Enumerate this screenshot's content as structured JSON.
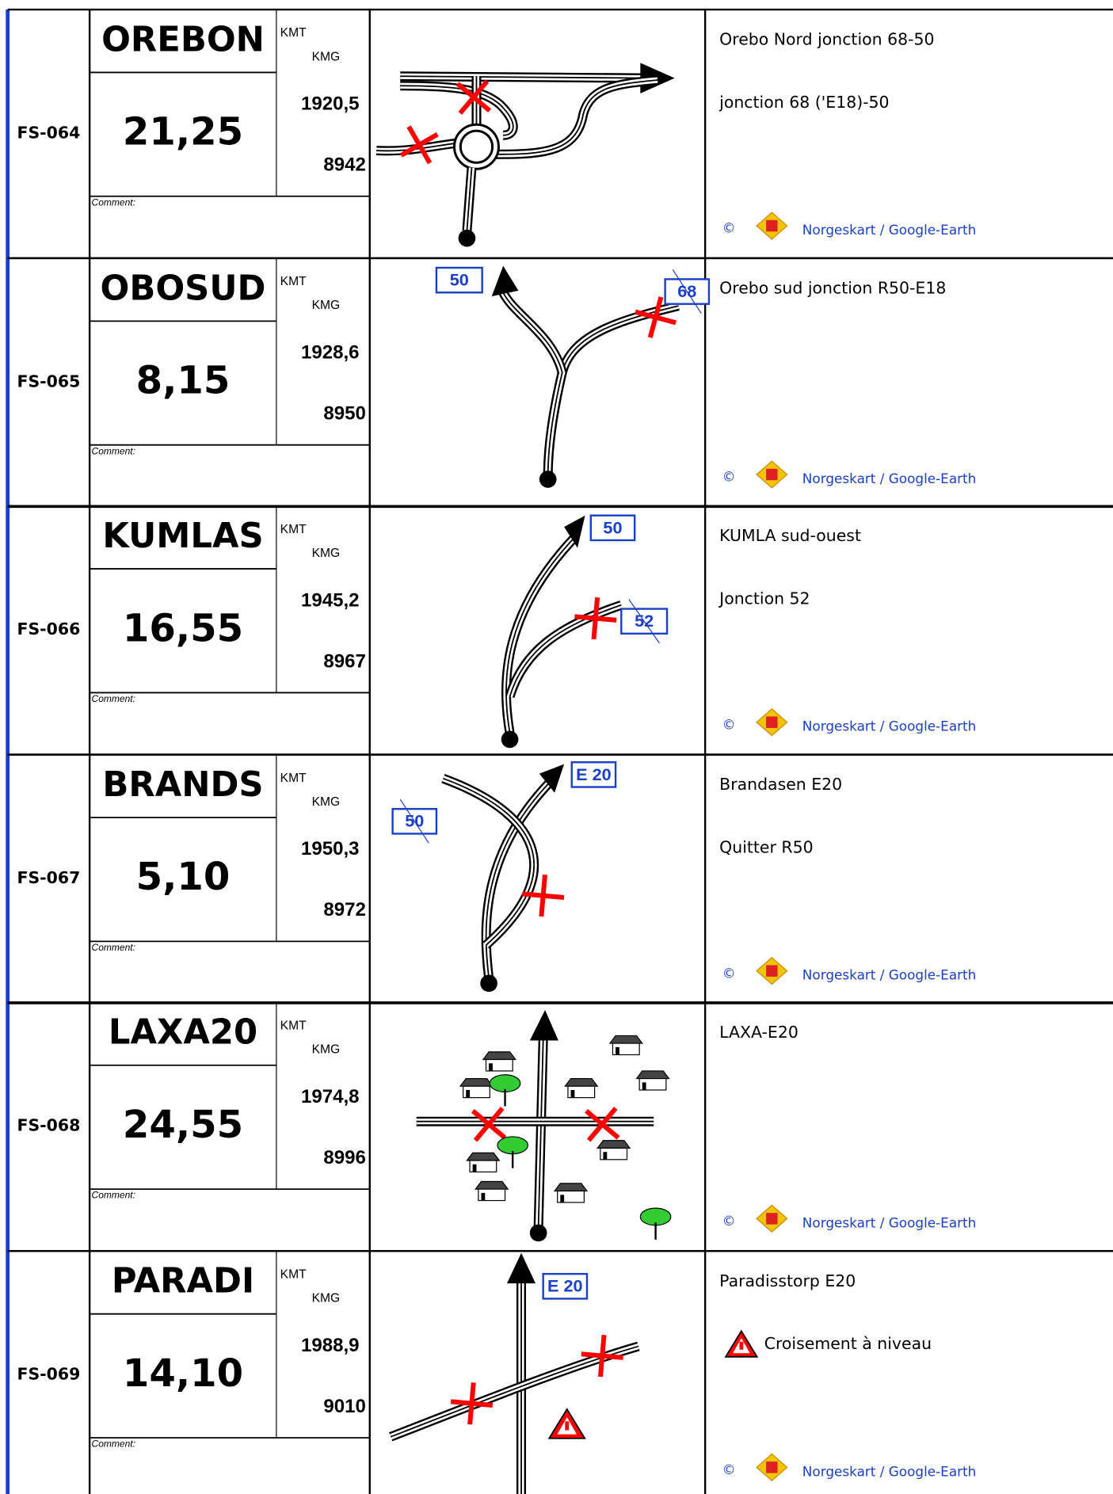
{
  "rows": [
    {
      "id": "FS-064",
      "name": "OREBON",
      "km": "21,25",
      "kmt_label": "KMT",
      "kmg_label": "KMG",
      "kmt": "1920,5",
      "kmg": "8942",
      "comment_label": "Comment:",
      "shields": [],
      "description": [
        "Orebo Nord  jonction 68-50",
        "jonction 68 ('E18)-50"
      ],
      "copyright": "©",
      "credit": "Norgeskart / Google-Earth"
    },
    {
      "id": "FS-065",
      "name": "OBOSUD",
      "km": "8,15",
      "kmt_label": "KMT",
      "kmg_label": "KMG",
      "kmt": "1928,6",
      "kmg": "8950",
      "comment_label": "Comment:",
      "shields": [
        "50",
        "68"
      ],
      "description": [
        "Orebo sud jonction R50-E18"
      ],
      "copyright": "©",
      "credit": "Norgeskart / Google-Earth"
    },
    {
      "id": "FS-066",
      "name": "KUMLAS",
      "km": "16,55",
      "kmt_label": "KMT",
      "kmg_label": "KMG",
      "kmt": "1945,2",
      "kmg": "8967",
      "comment_label": "Comment:",
      "shields": [
        "50",
        "52"
      ],
      "description": [
        "KUMLA sud-ouest",
        "Jonction 52"
      ],
      "copyright": "©",
      "credit": "Norgeskart / Google-Earth"
    },
    {
      "id": "FS-067",
      "name": "BRANDS",
      "km": "5,10",
      "kmt_label": "KMT",
      "kmg_label": "KMG",
      "kmt": "1950,3",
      "kmg": "8972",
      "comment_label": "Comment:",
      "shields": [
        "E 20",
        "50"
      ],
      "description": [
        "Brandasen E20",
        "Quitter R50"
      ],
      "copyright": "©",
      "credit": "Norgeskart / Google-Earth"
    },
    {
      "id": "FS-068",
      "name": "LAXA20",
      "km": "24,55",
      "kmt_label": "KMT",
      "kmg_label": "KMG",
      "kmt": "1974,8",
      "kmg": "8996",
      "comment_label": "Comment:",
      "shields": [],
      "description": [
        "LAXA-E20"
      ],
      "copyright": "©",
      "credit": "Norgeskart / Google-Earth"
    },
    {
      "id": "FS-069",
      "name": "PARADI",
      "km": "14,10",
      "kmt_label": "KMT",
      "kmg_label": "KMG",
      "kmt": "1988,9",
      "kmg": "9010",
      "comment_label": "Comment:",
      "shields": [
        "E 20"
      ],
      "description": [
        "Paradisstorp E20",
        "Croisement à niveau"
      ],
      "copyright": "©",
      "credit": "Norgeskart / Google-Earth"
    }
  ]
}
